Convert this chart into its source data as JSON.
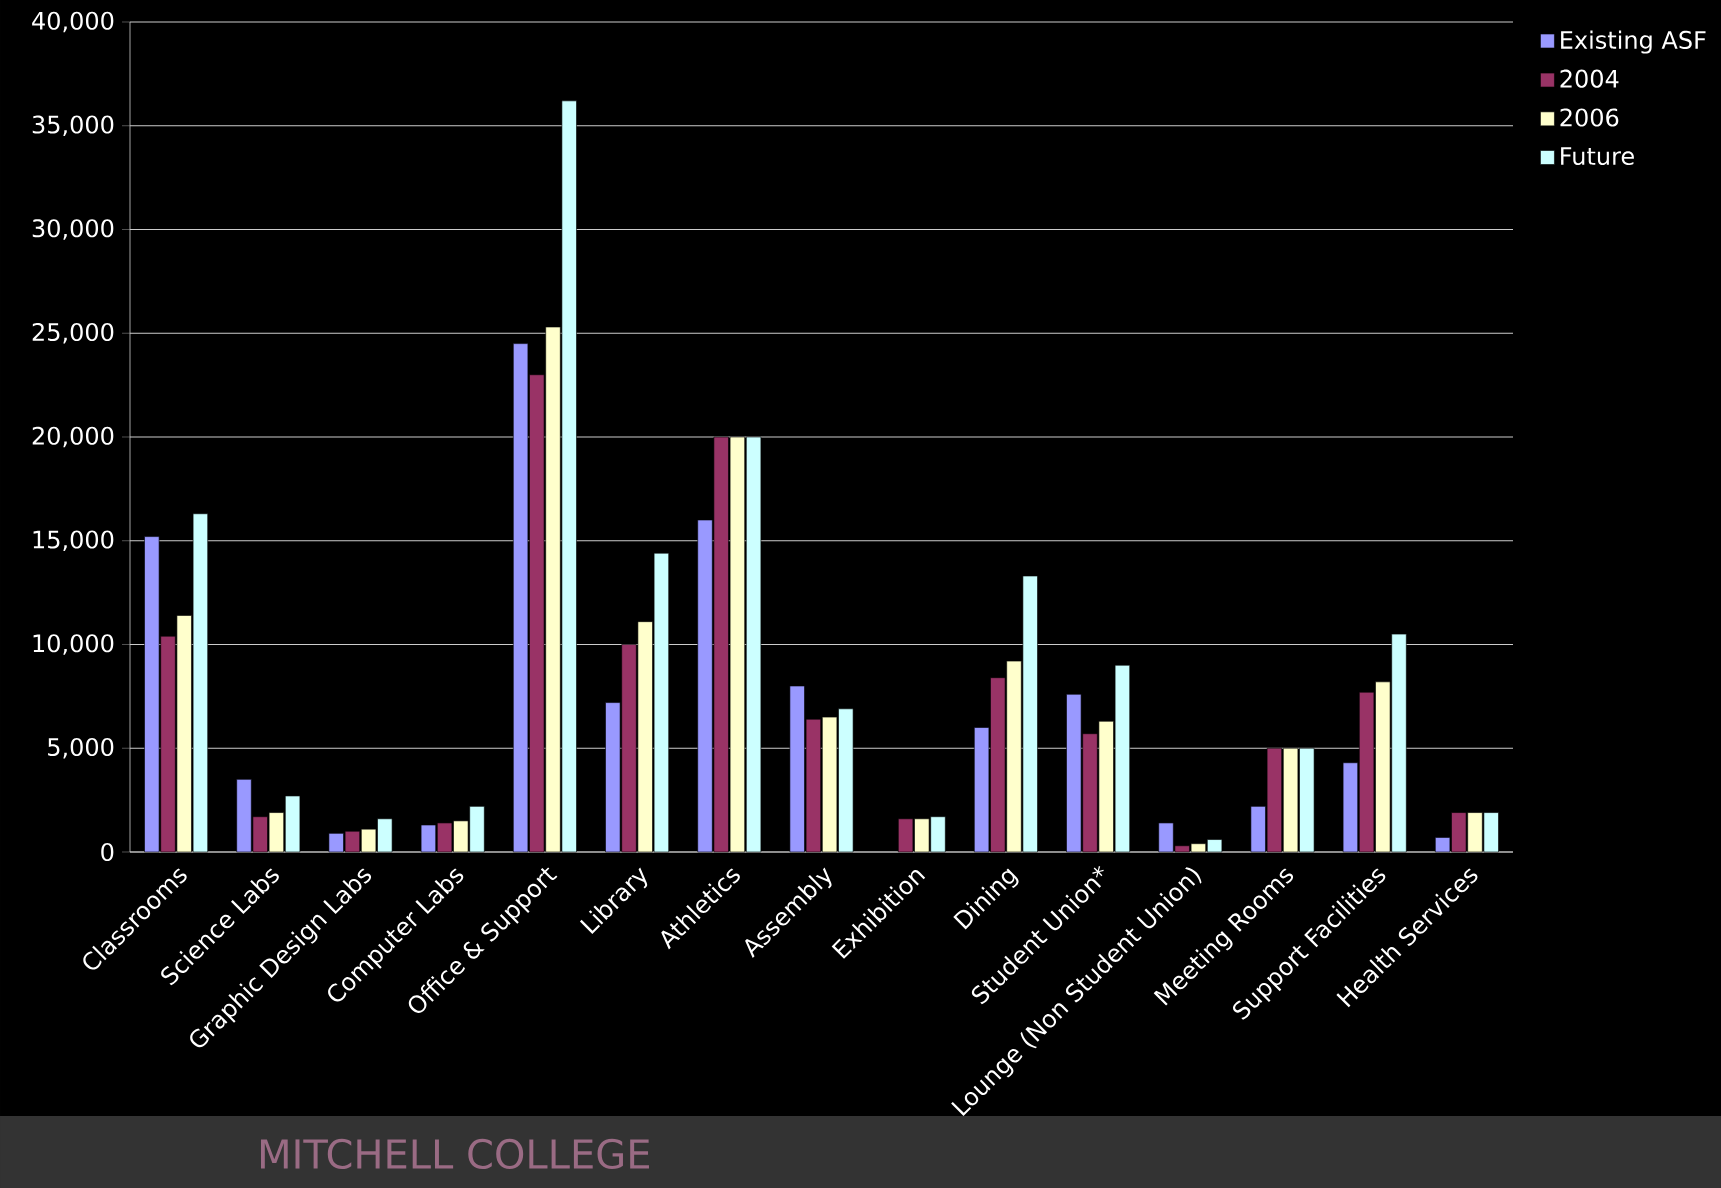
{
  "chart_data": {
    "type": "bar",
    "categories": [
      "Classrooms",
      "Science Labs",
      "Graphic Design Labs",
      "Computer Labs",
      "Office & Support",
      "Library",
      "Athletics",
      "Assembly",
      "Exhibition",
      "Dining",
      "Student Union*",
      "Lounge (Non Student Union)",
      "Meeting Rooms",
      "Support Facilities",
      "Health Services"
    ],
    "series": [
      {
        "name": "Existing ASF",
        "color": "#9999ff",
        "values": [
          15200,
          3500,
          900,
          1300,
          24500,
          7200,
          16000,
          8000,
          null,
          6000,
          7600,
          1400,
          2200,
          4300,
          700
        ]
      },
      {
        "name": "2004",
        "color": "#993366",
        "values": [
          10400,
          1700,
          1000,
          1400,
          23000,
          10000,
          20000,
          6400,
          1600,
          8400,
          5700,
          300,
          5000,
          7700,
          1900
        ]
      },
      {
        "name": "2006",
        "color": "#ffffcc",
        "values": [
          11400,
          1900,
          1100,
          1500,
          25300,
          11100,
          20000,
          6500,
          1600,
          9200,
          6300,
          400,
          5000,
          8200,
          1900
        ]
      },
      {
        "name": "Future",
        "color": "#ccffff",
        "values": [
          16300,
          2700,
          1600,
          2200,
          36200,
          14400,
          20000,
          6900,
          1700,
          13300,
          9000,
          600,
          5000,
          10500,
          1900
        ]
      }
    ],
    "ylim": [
      0,
      40000
    ],
    "yticks": [
      0,
      {
        "value": 5000,
        "label": "5,000"
      },
      {
        "value": 10000,
        "label": "10,000"
      },
      {
        "value": 15000,
        "label": "15,000"
      },
      {
        "value": 20000,
        "label": "20,000"
      },
      {
        "value": 25000,
        "label": "25,000"
      },
      {
        "value": 30000,
        "label": "30,000"
      },
      {
        "value": 35000,
        "label": "35,000"
      },
      {
        "value": 40000,
        "label": "40,000"
      }
    ],
    "grid": "y",
    "legend": "top right",
    "annotations": [
      "MITCHELL COLLEGE"
    ]
  }
}
